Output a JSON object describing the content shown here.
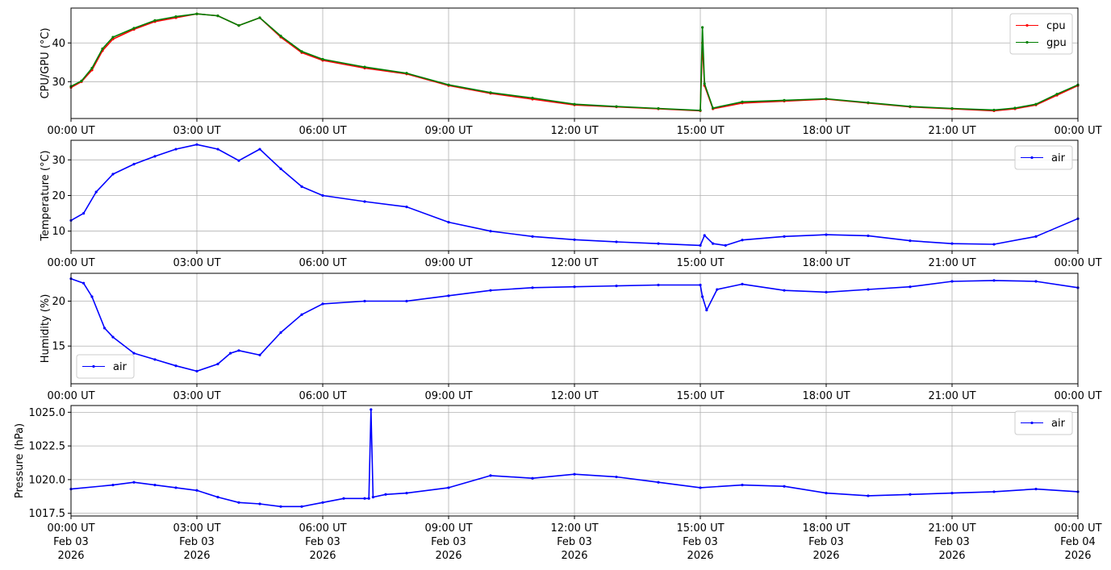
{
  "x_tick_labels": [
    "00:00 UT",
    "03:00 UT",
    "06:00 UT",
    "09:00 UT",
    "12:00 UT",
    "15:00 UT",
    "18:00 UT",
    "21:00 UT",
    "00:00 UT"
  ],
  "x_tick_dates": [
    "Feb 03",
    "Feb 03",
    "Feb 03",
    "Feb 03",
    "Feb 03",
    "Feb 03",
    "Feb 03",
    "Feb 03",
    "Feb 04"
  ],
  "x_tick_years": [
    "2026",
    "2026",
    "2026",
    "2026",
    "2026",
    "2026",
    "2026",
    "2026",
    "2026"
  ],
  "chart_data": [
    {
      "type": "line",
      "ylabel": "CPU/GPU (°C)",
      "xlim": [
        0,
        24
      ],
      "ylim": [
        20.5,
        49
      ],
      "yticks": [
        30,
        40
      ],
      "ytick_labels": [
        "30",
        "40"
      ],
      "grid": true,
      "legend_position": "top-right",
      "series": [
        {
          "name": "cpu",
          "color": "#ff0000",
          "x": [
            0,
            0.25,
            0.5,
            0.75,
            1,
            1.5,
            2,
            2.5,
            3,
            3.5,
            4,
            4.5,
            5,
            5.5,
            6,
            7,
            8,
            9,
            10,
            11,
            12,
            13,
            14,
            15,
            15.05,
            15.1,
            15.3,
            16,
            17,
            18,
            19,
            20,
            21,
            22,
            22.5,
            23,
            23.5,
            24
          ],
          "y": [
            28.5,
            30,
            33,
            38,
            41,
            43.5,
            45.5,
            46.5,
            47.5,
            47,
            44.5,
            46.5,
            41.5,
            37.5,
            35.5,
            33.5,
            32,
            29,
            27,
            25.5,
            24,
            23.5,
            23,
            22.5,
            40,
            29,
            23,
            24.5,
            25,
            25.5,
            24.5,
            23.5,
            23,
            22.5,
            23,
            24,
            26.5,
            29
          ]
        },
        {
          "name": "gpu",
          "color": "#008000",
          "x": [
            0,
            0.25,
            0.5,
            0.75,
            1,
            1.5,
            2,
            2.5,
            3,
            3.5,
            4,
            4.5,
            5,
            5.5,
            6,
            7,
            8,
            9,
            10,
            11,
            12,
            13,
            14,
            15,
            15.05,
            15.1,
            15.3,
            16,
            17,
            18,
            19,
            20,
            21,
            22,
            22.5,
            23,
            23.5,
            24
          ],
          "y": [
            28.8,
            30.2,
            33.5,
            38.5,
            41.5,
            43.8,
            45.8,
            46.8,
            47.5,
            47,
            44.5,
            46.5,
            41.8,
            37.8,
            35.8,
            33.8,
            32.2,
            29.2,
            27.2,
            25.8,
            24.2,
            23.6,
            23.1,
            22.6,
            44,
            29.5,
            23.2,
            24.8,
            25.2,
            25.6,
            24.6,
            23.6,
            23.1,
            22.7,
            23.2,
            24.2,
            26.8,
            29.2
          ]
        }
      ]
    },
    {
      "type": "line",
      "ylabel": "Temperature (°C)",
      "xlim": [
        0,
        24
      ],
      "ylim": [
        4.5,
        35.5
      ],
      "yticks": [
        10,
        20,
        30
      ],
      "ytick_labels": [
        "10",
        "20",
        "30"
      ],
      "grid": true,
      "legend_position": "top-right",
      "series": [
        {
          "name": "air",
          "color": "#0000ff",
          "x": [
            0,
            0.3,
            0.6,
            1,
            1.5,
            2,
            2.5,
            3,
            3.5,
            4,
            4.5,
            5,
            5.5,
            6,
            7,
            8,
            9,
            10,
            11,
            12,
            13,
            14,
            15,
            15.1,
            15.3,
            15.6,
            16,
            17,
            18,
            19,
            20,
            21,
            22,
            23,
            24
          ],
          "y": [
            13,
            15,
            21,
            26,
            28.8,
            31,
            33,
            34.3,
            33,
            29.8,
            33,
            27.5,
            22.5,
            20,
            18.3,
            16.8,
            12.5,
            10,
            8.5,
            7.6,
            7,
            6.5,
            6,
            8.8,
            6.5,
            6,
            7.5,
            8.5,
            9,
            8.7,
            7.3,
            6.5,
            6.3,
            8.5,
            13.5
          ]
        }
      ]
    },
    {
      "type": "line",
      "ylabel": "Humidity (%)",
      "xlim": [
        0,
        24
      ],
      "ylim": [
        10.8,
        23.1
      ],
      "yticks": [
        15,
        20
      ],
      "ytick_labels": [
        "15",
        "20"
      ],
      "grid": true,
      "legend_position": "bottom-left",
      "series": [
        {
          "name": "air",
          "color": "#0000ff",
          "x": [
            0,
            0.3,
            0.5,
            0.8,
            1,
            1.5,
            2,
            2.5,
            3,
            3.5,
            3.8,
            4,
            4.5,
            5,
            5.5,
            6,
            7,
            8,
            9,
            10,
            11,
            12,
            13,
            14,
            15,
            15.05,
            15.15,
            15.4,
            16,
            17,
            18,
            19,
            20,
            21,
            22,
            23,
            24
          ],
          "y": [
            22.5,
            22,
            20.5,
            17,
            16,
            14.2,
            13.5,
            12.8,
            12.2,
            13,
            14.2,
            14.5,
            14,
            16.5,
            18.5,
            19.7,
            20,
            20,
            20.6,
            21.2,
            21.5,
            21.6,
            21.7,
            21.8,
            21.8,
            20.5,
            19,
            21.3,
            21.9,
            21.2,
            21,
            21.3,
            21.6,
            22.2,
            22.3,
            22.2,
            21.5
          ]
        }
      ]
    },
    {
      "type": "line",
      "ylabel": "Pressure (hPa)",
      "xlim": [
        0,
        24
      ],
      "ylim": [
        1017.3,
        1025.5
      ],
      "yticks": [
        1017.5,
        1020.0,
        1022.5,
        1025.0
      ],
      "ytick_labels": [
        "1017.5",
        "1020.0",
        "1022.5",
        "1025.0"
      ],
      "grid": true,
      "legend_position": "top-right",
      "series": [
        {
          "name": "air",
          "color": "#0000ff",
          "x": [
            0,
            1,
            1.5,
            2,
            2.5,
            3,
            3.5,
            4,
            4.5,
            5,
            5.5,
            6,
            6.5,
            7,
            7.1,
            7.15,
            7.2,
            7.5,
            8,
            9,
            10,
            11,
            12,
            13,
            14,
            15,
            16,
            17,
            18,
            19,
            20,
            21,
            22,
            23,
            24
          ],
          "y": [
            1019.3,
            1019.6,
            1019.8,
            1019.6,
            1019.4,
            1019.2,
            1018.7,
            1018.3,
            1018.2,
            1018.0,
            1018.0,
            1018.3,
            1018.6,
            1018.6,
            1018.6,
            1025.2,
            1018.7,
            1018.9,
            1019.0,
            1019.4,
            1020.3,
            1020.1,
            1020.4,
            1020.2,
            1019.8,
            1019.4,
            1019.6,
            1019.5,
            1019.0,
            1018.8,
            1018.9,
            1019.0,
            1019.1,
            1019.3,
            1019.1
          ]
        }
      ]
    }
  ]
}
